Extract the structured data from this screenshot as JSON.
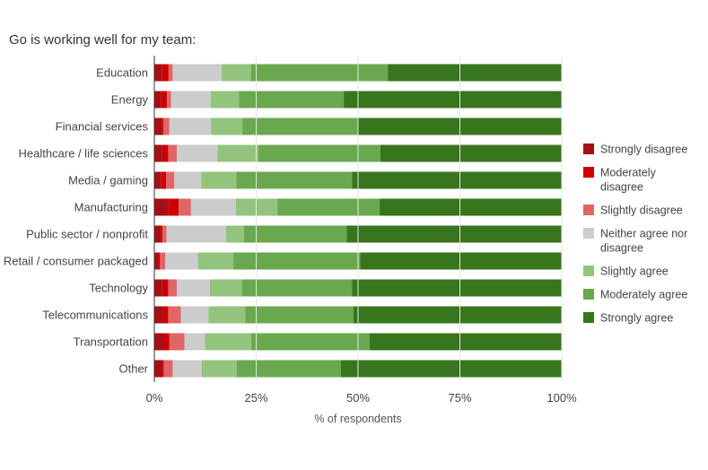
{
  "chart_data": {
    "type": "bar",
    "orientation": "horizontal",
    "stacked": true,
    "title": "Go is working well for my team:",
    "xlabel": "% of respondents",
    "ylabel": "",
    "xlim": [
      0,
      100
    ],
    "x_ticks": [
      "0%",
      "25%",
      "50%",
      "75%",
      "100%"
    ],
    "legend_position": "right",
    "categories": [
      "Education",
      "Energy",
      "Financial services",
      "Healthcare / life sciences",
      "Media / gaming",
      "Manufacturing",
      "Public sector / nonprofit",
      "Retail / consumer packaged",
      "Technology",
      "Telecommunications",
      "Transportation",
      "Other"
    ],
    "series": [
      {
        "name": "Strongly disagree",
        "color": "#a50f15",
        "values": [
          1.8,
          1.6,
          1.8,
          1.9,
          1.7,
          3.5,
          1.6,
          1.0,
          1.8,
          2.0,
          2.2,
          2.0
        ]
      },
      {
        "name": "Moderately disagree",
        "color": "#cc0000",
        "values": [
          1.7,
          1.5,
          0.4,
          1.5,
          1.2,
          2.5,
          0.4,
          0.4,
          1.6,
          1.4,
          1.5,
          0.3
        ]
      },
      {
        "name": "Slightly disagree",
        "color": "#e06666",
        "values": [
          1.0,
          1.0,
          1.5,
          2.1,
          2.0,
          3.0,
          1.0,
          1.3,
          2.1,
          3.1,
          3.7,
          2.2
        ]
      },
      {
        "name": "Neither agree nor disagree",
        "color": "#cccccc",
        "values": [
          12.0,
          9.7,
          10.2,
          10.0,
          6.6,
          11.0,
          14.6,
          8.0,
          8.1,
          6.8,
          5.0,
          7.1
        ]
      },
      {
        "name": "Slightly agree",
        "color": "#93c47d",
        "values": [
          7.2,
          7.0,
          7.7,
          10.0,
          8.6,
          10.2,
          4.4,
          8.7,
          7.9,
          9.0,
          11.4,
          8.6
        ]
      },
      {
        "name": "Moderately agree",
        "color": "#6aa84f",
        "values": [
          33.6,
          25.7,
          28.5,
          30.0,
          28.4,
          25.1,
          25.2,
          31.1,
          27.0,
          26.6,
          29.0,
          25.6
        ]
      },
      {
        "name": "Strongly agree",
        "color": "#38761d",
        "values": [
          42.7,
          53.5,
          49.9,
          44.5,
          51.5,
          44.7,
          52.8,
          49.5,
          51.5,
          51.1,
          47.2,
          54.2
        ]
      }
    ]
  }
}
